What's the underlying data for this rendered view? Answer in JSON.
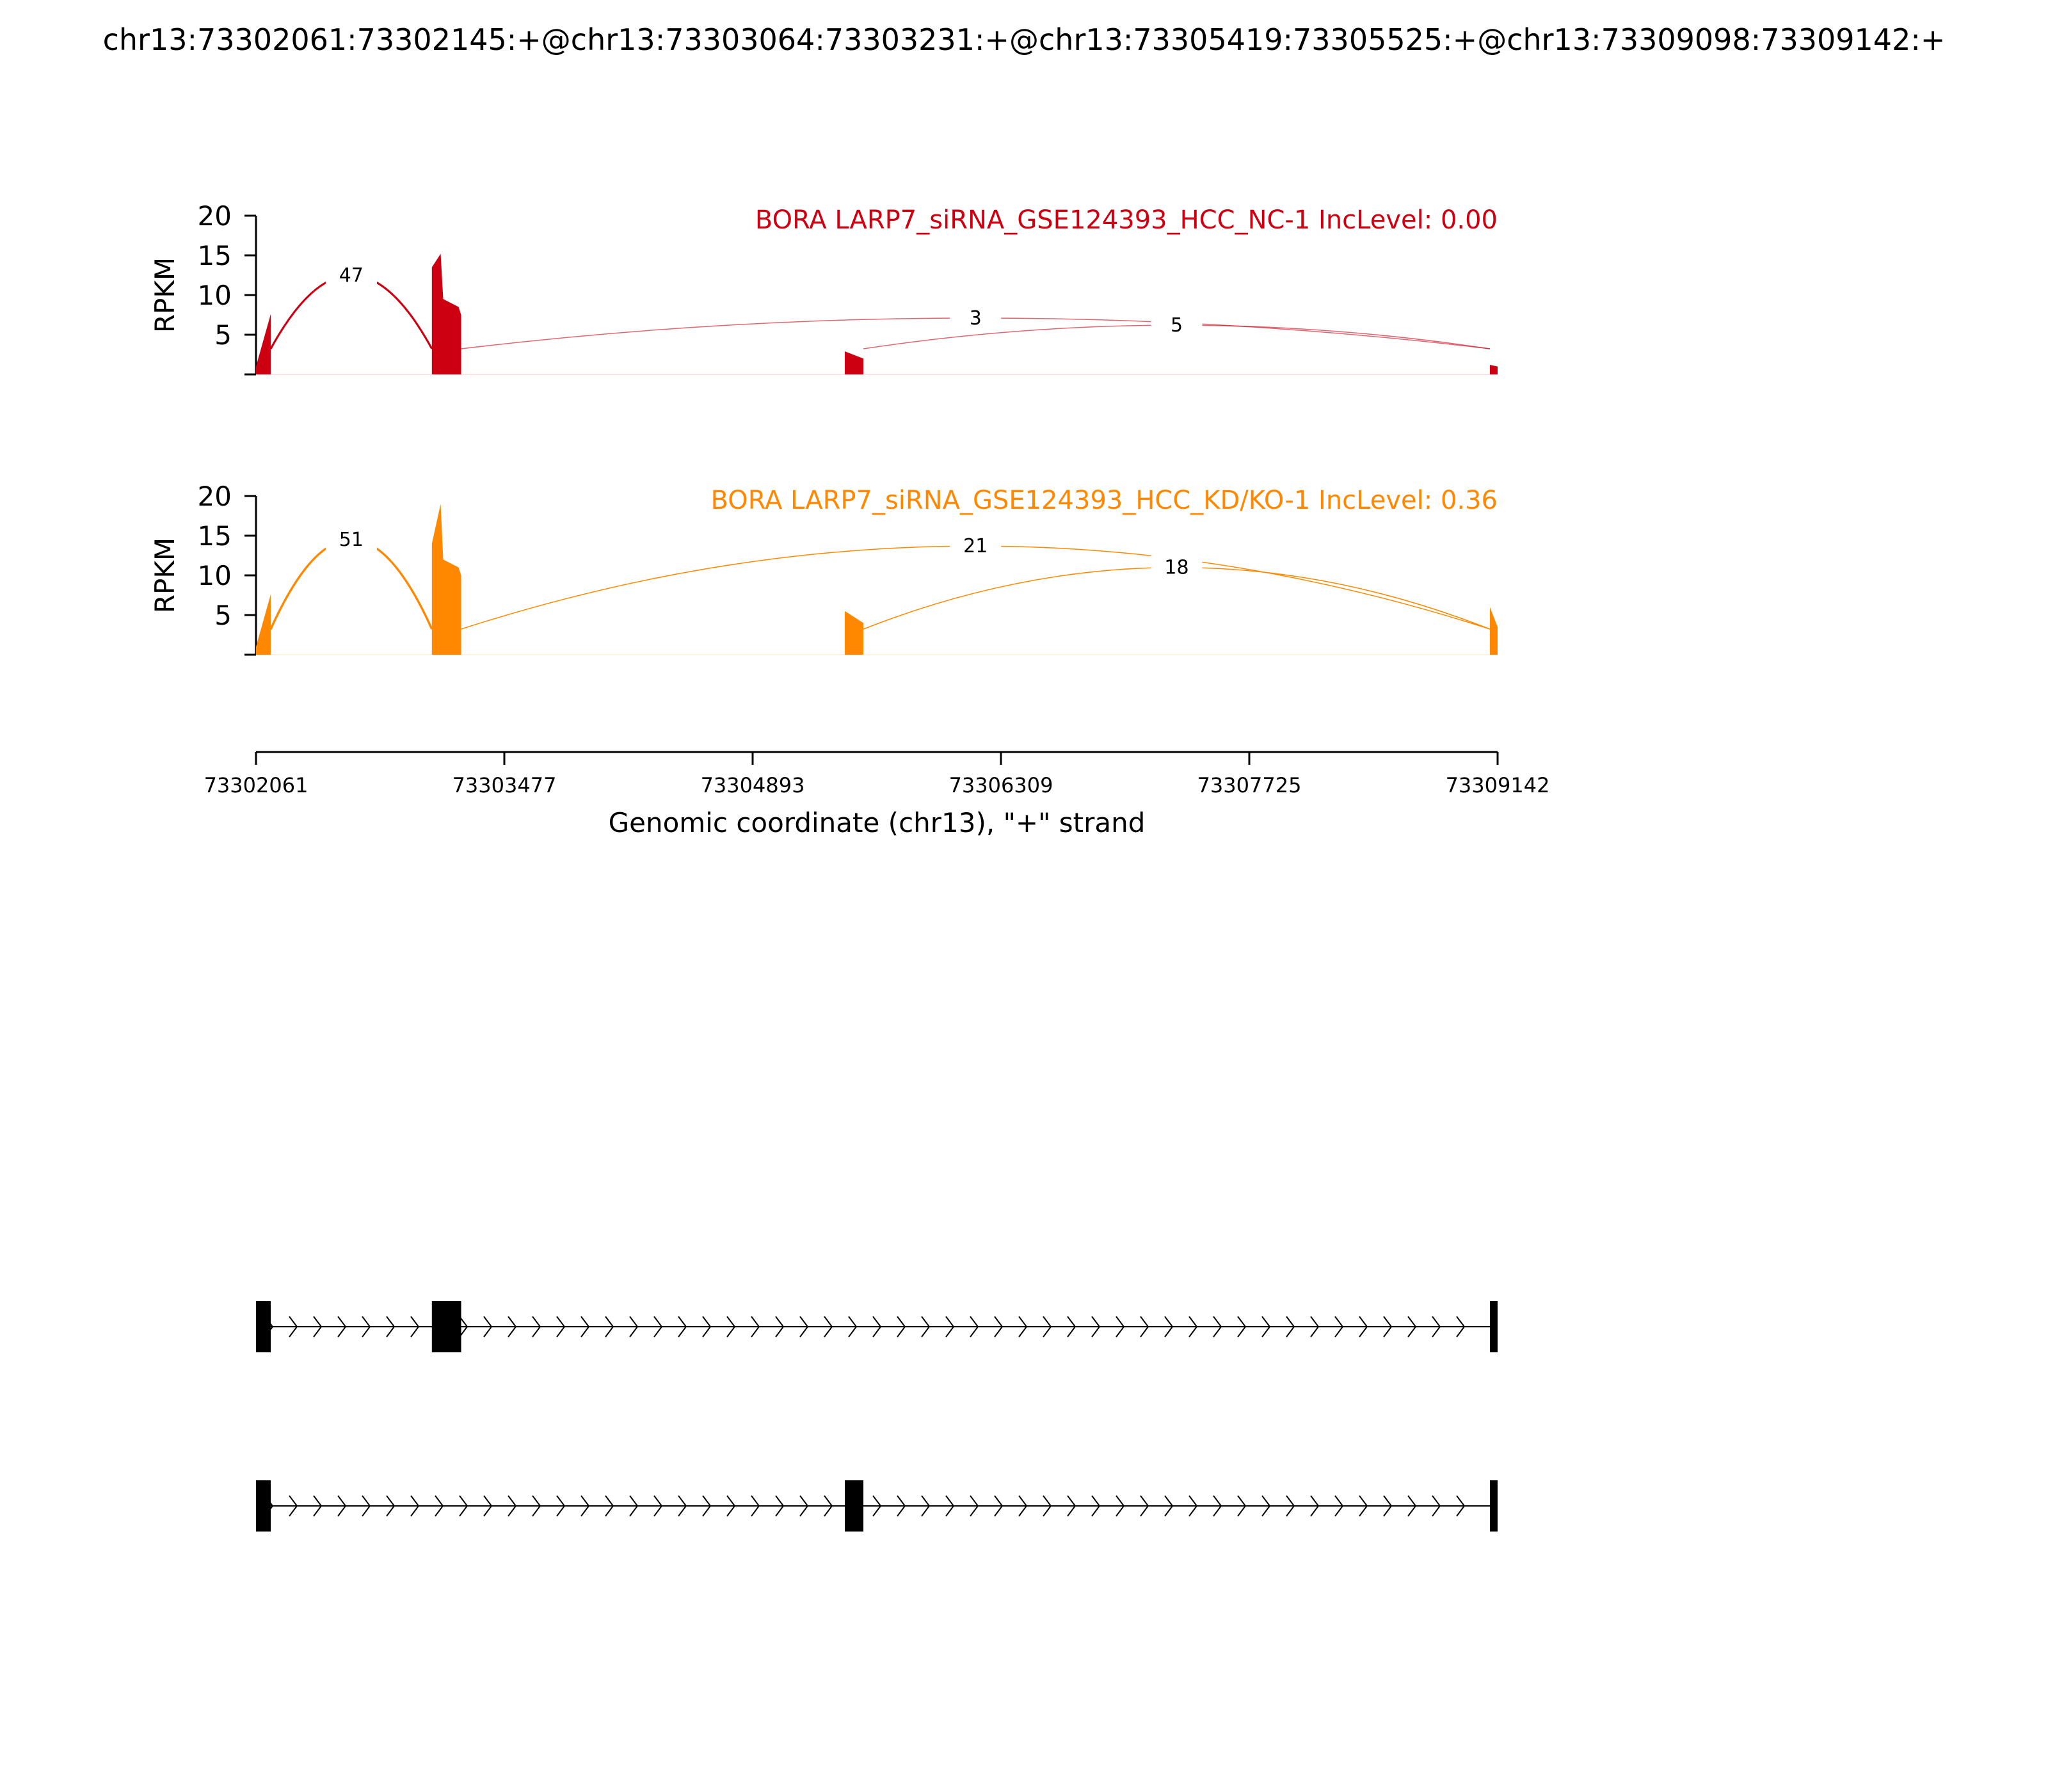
{
  "figure_title": "chr13:73302061:73302145:+@chr13:73303064:73303231:+@chr13:73305419:73305525:+@chr13:73309098:73309142:+",
  "chart_data": {
    "type": "area",
    "xlabel": "Genomic coordinate (chr13), \"+\" strand",
    "xlim": [
      73302061,
      73309142
    ],
    "xticks": [
      "73302061",
      "73303477",
      "73304893",
      "73306309",
      "73307725",
      "73309142"
    ],
    "panels": [
      {
        "name": "BORA LARP7_siRNA_GSE124393_HCC_NC-1",
        "label": "BORA LARP7_siRNA_GSE124393_HCC_NC-1 IncLevel: 0.00",
        "inc_level": 0.0,
        "color": "#CC0011",
        "ylabel": "RPKM",
        "ylim": [
          0,
          20
        ],
        "yticks": [
          "5",
          "10",
          "15",
          "20"
        ],
        "exons": [
          {
            "start": 73302061,
            "end": 73302145,
            "rpkm_start": 1,
            "rpkm_end": 7.6
          },
          {
            "start": 73303064,
            "end": 73303231,
            "rpkm_start": 13.5,
            "rpkm_peak": 15.2,
            "rpkm_end": 8.5
          },
          {
            "start": 73305419,
            "end": 73305525,
            "rpkm_start": 2.9,
            "rpkm_end": 2.0
          },
          {
            "start": 73309098,
            "end": 73309142,
            "rpkm_start": 1.2,
            "rpkm_end": 1.0
          }
        ],
        "junctions": [
          {
            "from": 73302145,
            "to": 73303064,
            "reads": "47",
            "height": 12.5
          },
          {
            "from": 73303231,
            "to": 73309098,
            "reads": "3",
            "height": 7.1
          },
          {
            "from": 73305525,
            "to": 73309098,
            "reads": "5",
            "height": 6.2
          }
        ]
      },
      {
        "name": "BORA LARP7_siRNA_GSE124393_HCC_KD/KO-1",
        "label": "BORA LARP7_siRNA_GSE124393_HCC_KD/KO-1 IncLevel: 0.36",
        "inc_level": 0.36,
        "color": "#FF8800",
        "ylabel": "RPKM",
        "ylim": [
          0,
          20
        ],
        "yticks": [
          "5",
          "10",
          "15",
          "20"
        ],
        "exons": [
          {
            "start": 73302061,
            "end": 73302145,
            "rpkm_start": 1,
            "rpkm_end": 7.6
          },
          {
            "start": 73303064,
            "end": 73303231,
            "rpkm_start": 14,
            "rpkm_peak": 19,
            "rpkm_end": 11
          },
          {
            "start": 73305419,
            "end": 73305525,
            "rpkm_start": 5.5,
            "rpkm_end": 4.0
          },
          {
            "start": 73309098,
            "end": 73309142,
            "rpkm_start": 6,
            "rpkm_end": 3.5
          }
        ],
        "junctions": [
          {
            "from": 73302145,
            "to": 73303064,
            "reads": "51",
            "height": 14.5
          },
          {
            "from": 73303231,
            "to": 73309098,
            "reads": "21",
            "height": 13.7
          },
          {
            "from": 73305525,
            "to": 73309098,
            "reads": "18",
            "height": 11.0
          }
        ]
      }
    ],
    "isoforms": [
      {
        "exons": [
          [
            73302061,
            73302145
          ],
          [
            73303064,
            73303231
          ],
          [
            73309098,
            73309142
          ]
        ]
      },
      {
        "exons": [
          [
            73302061,
            73302145
          ],
          [
            73305419,
            73305525
          ],
          [
            73309098,
            73309142
          ]
        ]
      }
    ]
  }
}
